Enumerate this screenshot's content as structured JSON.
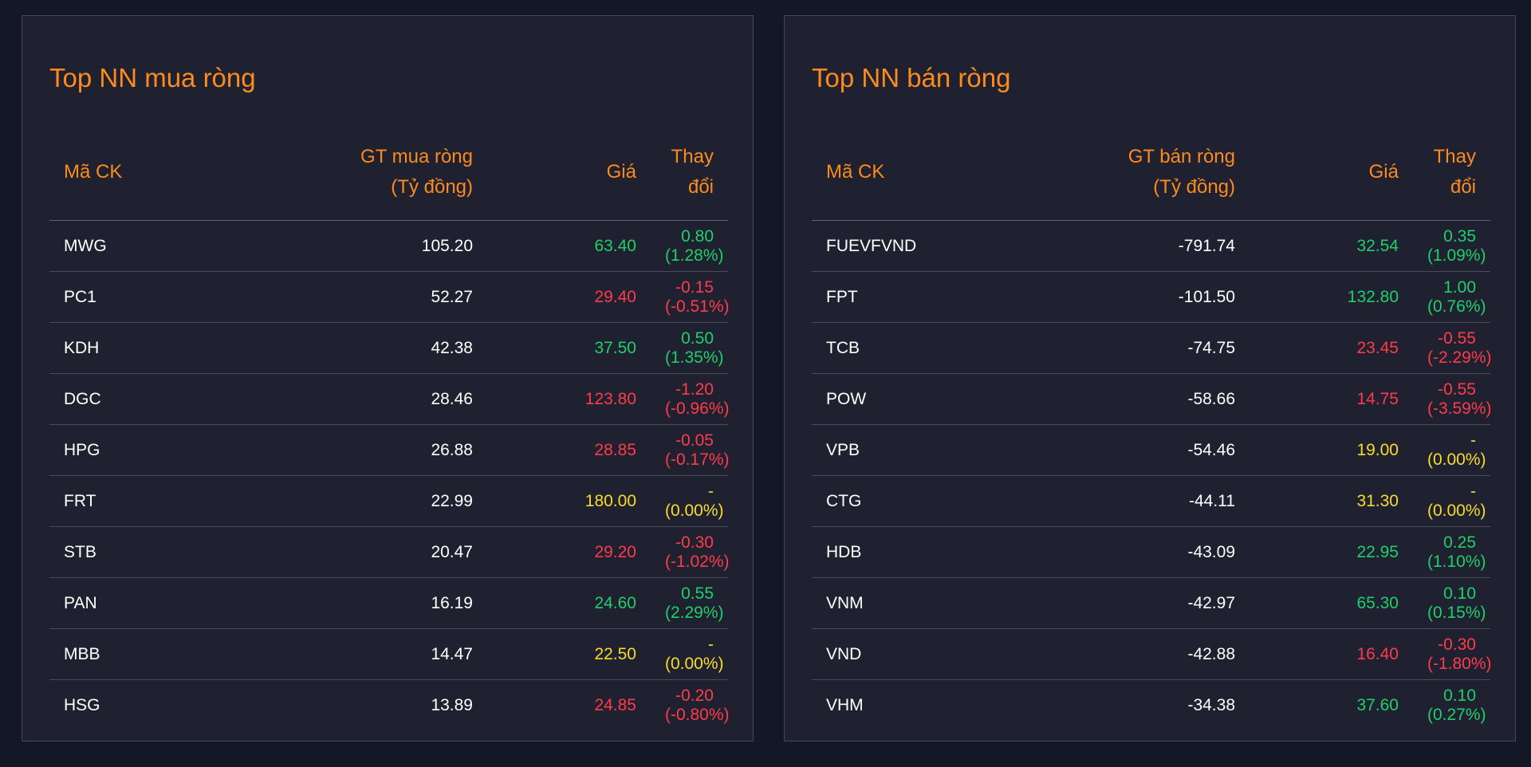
{
  "colors": {
    "background": "#141826",
    "panel": "#1f2130",
    "accent": "#fb8b1e",
    "up": "#1fcf6a",
    "down": "#ff3b4a",
    "flat": "#f7dc2b"
  },
  "buy": {
    "title": "Top NN mua ròng",
    "headers": {
      "code": "Mã CK",
      "value_line1": "GT mua ròng",
      "value_line2": "(Tỷ đồng)",
      "price": "Giá",
      "change": "Thay đổi"
    },
    "rows": [
      {
        "code": "MWG",
        "value": "105.20",
        "price": "63.40",
        "change": "0.80 (1.28%)",
        "trend": "up"
      },
      {
        "code": "PC1",
        "value": "52.27",
        "price": "29.40",
        "change": "-0.15 (-0.51%)",
        "trend": "down"
      },
      {
        "code": "KDH",
        "value": "42.38",
        "price": "37.50",
        "change": "0.50 (1.35%)",
        "trend": "up"
      },
      {
        "code": "DGC",
        "value": "28.46",
        "price": "123.80",
        "change": "-1.20 (-0.96%)",
        "trend": "down"
      },
      {
        "code": "HPG",
        "value": "26.88",
        "price": "28.85",
        "change": "-0.05 (-0.17%)",
        "trend": "down"
      },
      {
        "code": "FRT",
        "value": "22.99",
        "price": "180.00",
        "change": "- (0.00%)",
        "trend": "flat"
      },
      {
        "code": "STB",
        "value": "20.47",
        "price": "29.20",
        "change": "-0.30 (-1.02%)",
        "trend": "down"
      },
      {
        "code": "PAN",
        "value": "16.19",
        "price": "24.60",
        "change": "0.55 (2.29%)",
        "trend": "up"
      },
      {
        "code": "MBB",
        "value": "14.47",
        "price": "22.50",
        "change": "- (0.00%)",
        "trend": "flat"
      },
      {
        "code": "HSG",
        "value": "13.89",
        "price": "24.85",
        "change": "-0.20 (-0.80%)",
        "trend": "down"
      }
    ]
  },
  "sell": {
    "title": "Top NN bán ròng",
    "headers": {
      "code": "Mã CK",
      "value_line1": "GT bán ròng",
      "value_line2": "(Tỷ đồng)",
      "price": "Giá",
      "change": "Thay đổi"
    },
    "rows": [
      {
        "code": "FUEVFVND",
        "value": "-791.74",
        "price": "32.54",
        "change": "0.35 (1.09%)",
        "trend": "up"
      },
      {
        "code": "FPT",
        "value": "-101.50",
        "price": "132.80",
        "change": "1.00 (0.76%)",
        "trend": "up"
      },
      {
        "code": "TCB",
        "value": "-74.75",
        "price": "23.45",
        "change": "-0.55 (-2.29%)",
        "trend": "down"
      },
      {
        "code": "POW",
        "value": "-58.66",
        "price": "14.75",
        "change": "-0.55 (-3.59%)",
        "trend": "down"
      },
      {
        "code": "VPB",
        "value": "-54.46",
        "price": "19.00",
        "change": "- (0.00%)",
        "trend": "flat"
      },
      {
        "code": "CTG",
        "value": "-44.11",
        "price": "31.30",
        "change": "- (0.00%)",
        "trend": "flat"
      },
      {
        "code": "HDB",
        "value": "-43.09",
        "price": "22.95",
        "change": "0.25 (1.10%)",
        "trend": "up"
      },
      {
        "code": "VNM",
        "value": "-42.97",
        "price": "65.30",
        "change": "0.10 (0.15%)",
        "trend": "up"
      },
      {
        "code": "VND",
        "value": "-42.88",
        "price": "16.40",
        "change": "-0.30 (-1.80%)",
        "trend": "down"
      },
      {
        "code": "VHM",
        "value": "-34.38",
        "price": "37.60",
        "change": "0.10 (0.27%)",
        "trend": "up"
      }
    ]
  }
}
